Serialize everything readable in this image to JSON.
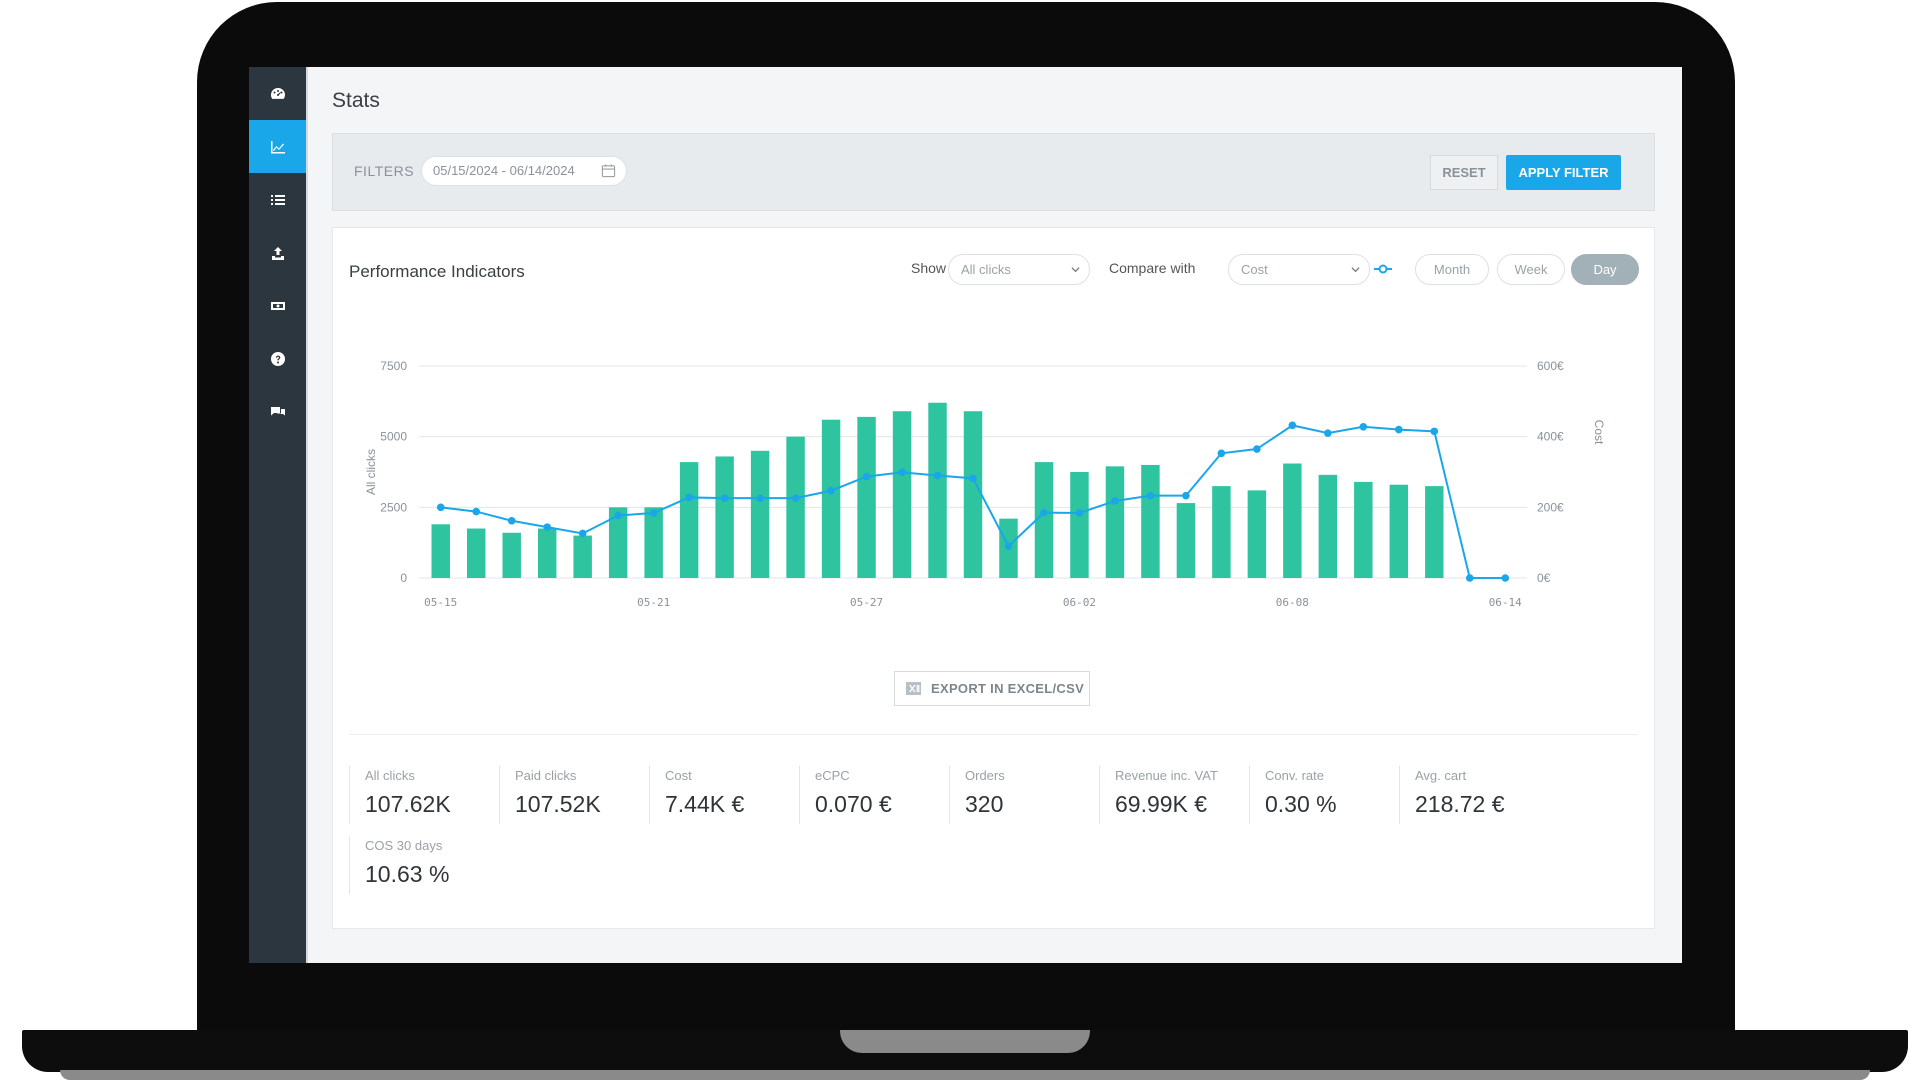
{
  "sidebar": {
    "items": [
      {
        "icon": "dashboard-icon",
        "active": false
      },
      {
        "icon": "line-chart-icon",
        "active": true
      },
      {
        "icon": "list-icon",
        "active": false
      },
      {
        "icon": "upload-icon",
        "active": false
      },
      {
        "icon": "money-icon",
        "active": false
      },
      {
        "icon": "help-icon",
        "active": false
      },
      {
        "icon": "chat-icon",
        "active": false
      }
    ]
  },
  "page": {
    "title": "Stats"
  },
  "filters": {
    "label": "FILTERS",
    "date_range": "05/15/2024 - 06/14/2024",
    "reset_label": "RESET",
    "apply_label": "APPLY FILTER"
  },
  "performance": {
    "title": "Performance Indicators",
    "show_label": "Show",
    "show_value": "All clicks",
    "compare_label": "Compare with",
    "compare_value": "Cost",
    "periods": [
      "Month",
      "Week",
      "Day"
    ],
    "active_period": "Day",
    "export_label": "EXPORT IN EXCEL/CSV"
  },
  "chart_data": {
    "type": "bar",
    "x_tick_labels": [
      "05-15",
      "05-21",
      "05-27",
      "06-02",
      "06-08",
      "06-14"
    ],
    "categories": [
      "05-15",
      "05-16",
      "05-17",
      "05-18",
      "05-19",
      "05-20",
      "05-21",
      "05-22",
      "05-23",
      "05-24",
      "05-25",
      "05-26",
      "05-27",
      "05-28",
      "05-29",
      "05-30",
      "05-31",
      "06-01",
      "06-02",
      "06-03",
      "06-04",
      "06-05",
      "06-06",
      "06-07",
      "06-08",
      "06-09",
      "06-10",
      "06-11",
      "06-12",
      "06-13",
      "06-14"
    ],
    "series": [
      {
        "axis": "left",
        "kind": "bar",
        "values": [
          1900,
          1750,
          1600,
          1750,
          1500,
          2500,
          2500,
          4100,
          4300,
          4500,
          5000,
          5600,
          5700,
          5900,
          6200,
          5900,
          2100,
          4100,
          3750,
          3950,
          4000,
          2650,
          3250,
          3100,
          4050,
          3650,
          3400,
          3300,
          3250,
          0,
          0
        ]
      },
      {
        "axis": "right",
        "kind": "line",
        "values": [
          200,
          188,
          162,
          144,
          126,
          177,
          184,
          228,
          226,
          226,
          226,
          247,
          287,
          299,
          290,
          282,
          90,
          185,
          184,
          218,
          233,
          233,
          353,
          365,
          432,
          410,
          428,
          420,
          415,
          0,
          0
        ]
      }
    ],
    "ylabel": "All clicks",
    "y2label": "Cost",
    "ylim": [
      0,
      7500
    ],
    "yticks": [
      "0",
      "2500",
      "5000",
      "7500"
    ],
    "y2lim": [
      0,
      600
    ],
    "y2ticks": [
      "0€",
      "200€",
      "400€",
      "600€"
    ],
    "colors": {
      "bar": "#2ec4a0",
      "line": "#1aa7ea"
    },
    "grid": true
  },
  "kpis": [
    {
      "label": "All clicks",
      "value": "107.62K"
    },
    {
      "label": "Paid clicks",
      "value": "107.52K"
    },
    {
      "label": "Cost",
      "value": "7.44K €"
    },
    {
      "label": "eCPC",
      "value": "0.070 €"
    },
    {
      "label": "Orders",
      "value": "320"
    },
    {
      "label": "Revenue inc. VAT",
      "value": "69.99K €"
    },
    {
      "label": "Conv. rate",
      "value": "0.30 %"
    },
    {
      "label": "Avg. cart",
      "value": "218.72 €"
    },
    {
      "label": "COS 30 days",
      "value": "10.63 %"
    }
  ]
}
